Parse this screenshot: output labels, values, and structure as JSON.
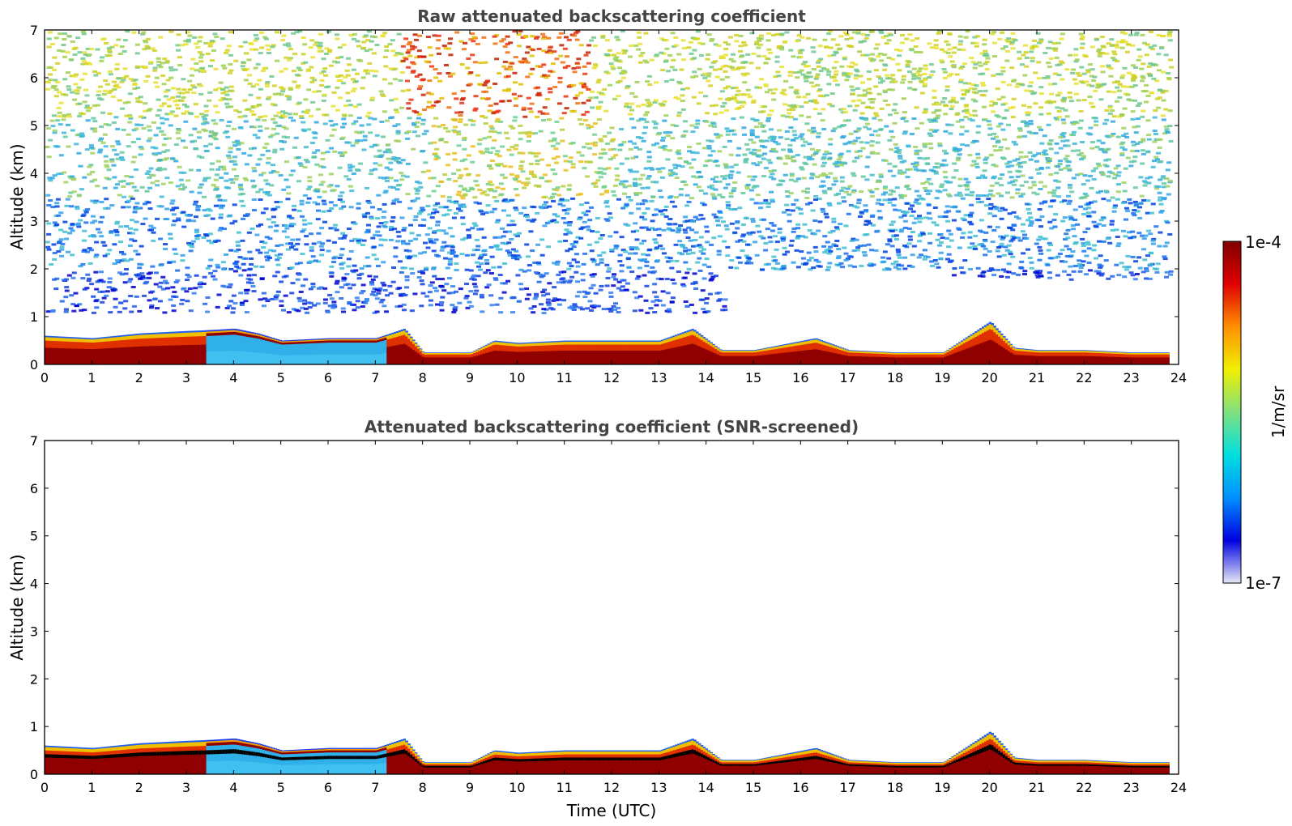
{
  "chart_data": [
    {
      "type": "heatmap",
      "title": "Raw attenuated backscattering coefficient",
      "xlabel": "",
      "ylabel": "Altitude (km)",
      "xlim": [
        0,
        24
      ],
      "ylim": [
        0,
        7
      ],
      "xticks": [
        "0",
        "1",
        "2",
        "3",
        "4",
        "5",
        "6",
        "7",
        "8",
        "9",
        "10",
        "11",
        "12",
        "13",
        "14",
        "15",
        "16",
        "17",
        "18",
        "19",
        "20",
        "21",
        "22",
        "23",
        "24"
      ],
      "yticks": [
        "0",
        "1",
        "2",
        "3",
        "4",
        "5",
        "6",
        "7"
      ],
      "noise_above_boundary_layer": true,
      "boundary_layer_top_km": [
        [
          0,
          0.6
        ],
        [
          1,
          0.55
        ],
        [
          2,
          0.65
        ],
        [
          3,
          0.7
        ],
        [
          3.5,
          0.72
        ],
        [
          4,
          0.75
        ],
        [
          4.5,
          0.65
        ],
        [
          5,
          0.5
        ],
        [
          6,
          0.55
        ],
        [
          7,
          0.55
        ],
        [
          7.6,
          0.75
        ],
        [
          8,
          0.25
        ],
        [
          9,
          0.25
        ],
        [
          9.5,
          0.5
        ],
        [
          10,
          0.45
        ],
        [
          11,
          0.5
        ],
        [
          12,
          0.5
        ],
        [
          13,
          0.5
        ],
        [
          13.7,
          0.75
        ],
        [
          14.3,
          0.3
        ],
        [
          15,
          0.3
        ],
        [
          16.3,
          0.55
        ],
        [
          17,
          0.3
        ],
        [
          18,
          0.25
        ],
        [
          19,
          0.25
        ],
        [
          20,
          0.9
        ],
        [
          20.5,
          0.35
        ],
        [
          21,
          0.3
        ],
        [
          22,
          0.3
        ],
        [
          23,
          0.25
        ],
        [
          23.8,
          0.25
        ]
      ]
    },
    {
      "type": "heatmap",
      "title": "Attenuated backscattering coefficient (SNR-screened)",
      "xlabel": "Time (UTC)",
      "ylabel": "Altitude (km)",
      "xlim": [
        0,
        24
      ],
      "ylim": [
        0,
        7
      ],
      "xticks": [
        "0",
        "1",
        "2",
        "3",
        "4",
        "5",
        "6",
        "7",
        "8",
        "9",
        "10",
        "11",
        "12",
        "13",
        "14",
        "15",
        "16",
        "17",
        "18",
        "19",
        "20",
        "21",
        "22",
        "23",
        "24"
      ],
      "yticks": [
        "0",
        "1",
        "2",
        "3",
        "4",
        "5",
        "6",
        "7"
      ],
      "noise_above_boundary_layer": false,
      "boundary_layer_top_km": [
        [
          0,
          0.6
        ],
        [
          1,
          0.55
        ],
        [
          2,
          0.65
        ],
        [
          3,
          0.7
        ],
        [
          3.5,
          0.72
        ],
        [
          4,
          0.75
        ],
        [
          4.5,
          0.65
        ],
        [
          5,
          0.5
        ],
        [
          6,
          0.55
        ],
        [
          7,
          0.55
        ],
        [
          7.6,
          0.75
        ],
        [
          8,
          0.25
        ],
        [
          9,
          0.25
        ],
        [
          9.5,
          0.5
        ],
        [
          10,
          0.45
        ],
        [
          11,
          0.5
        ],
        [
          12,
          0.5
        ],
        [
          13,
          0.5
        ],
        [
          13.7,
          0.75
        ],
        [
          14.3,
          0.3
        ],
        [
          15,
          0.3
        ],
        [
          16.3,
          0.55
        ],
        [
          17,
          0.3
        ],
        [
          18,
          0.25
        ],
        [
          19,
          0.25
        ],
        [
          20,
          0.9
        ],
        [
          20.5,
          0.35
        ],
        [
          21,
          0.3
        ],
        [
          22,
          0.3
        ],
        [
          23,
          0.25
        ],
        [
          23.8,
          0.25
        ]
      ]
    }
  ],
  "colorbar": {
    "max_label": "1e-4",
    "min_label": "1e-7",
    "unit_label": "1/m/sr",
    "colors": [
      "#e8e8f8",
      "#0000e0",
      "#0090ff",
      "#00e0e0",
      "#80e080",
      "#f0f000",
      "#ff9000",
      "#e00000",
      "#800000"
    ]
  }
}
